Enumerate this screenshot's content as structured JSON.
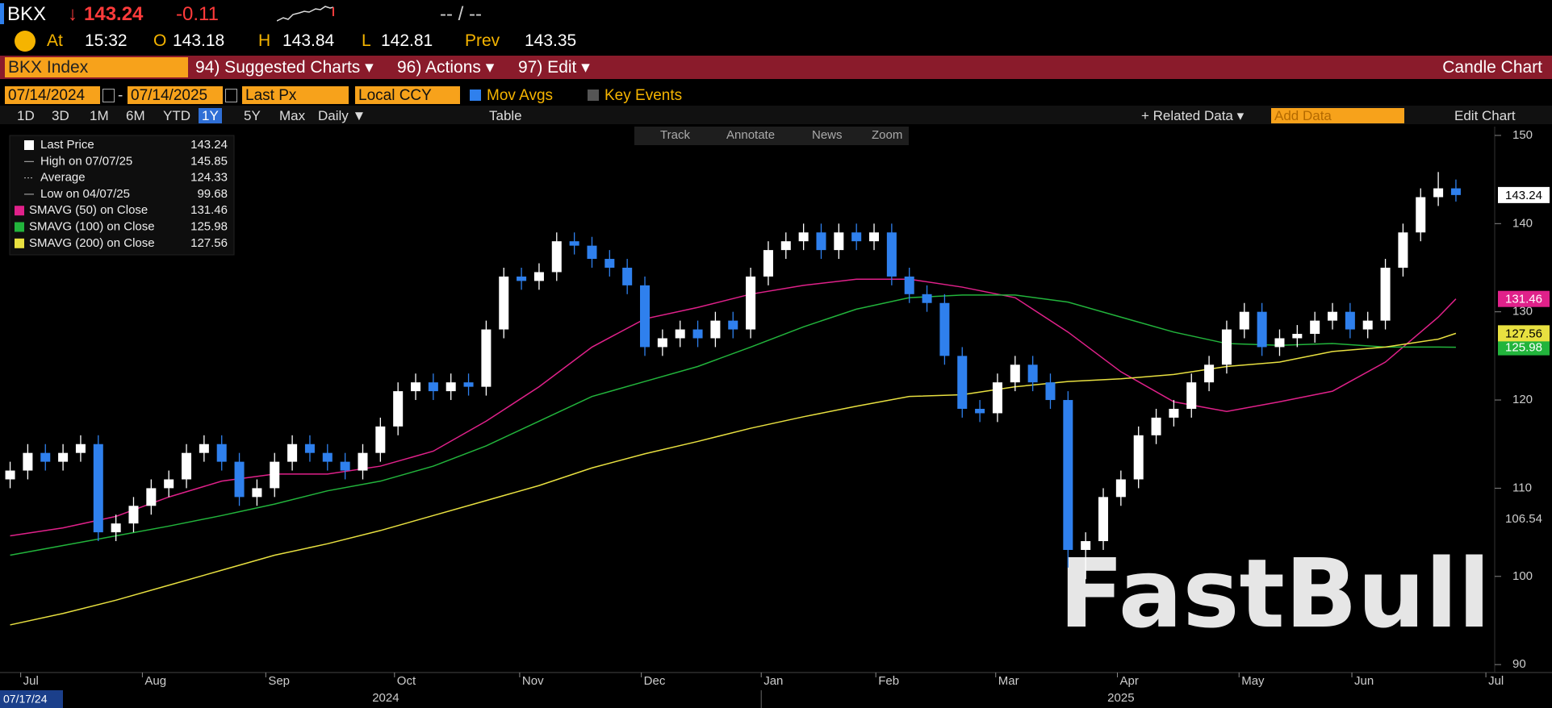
{
  "header": {
    "ticker": "BKX",
    "direction": "↓",
    "last": 143.24,
    "change": -0.11,
    "bid_ask": "-- / --",
    "at_label": "At",
    "time": "15:32",
    "open_label": "O",
    "open": 143.18,
    "high_label": "H",
    "high": 143.84,
    "low_label": "L",
    "low": 142.81,
    "prev_label": "Prev",
    "prev": 143.35
  },
  "menu": {
    "security": "BKX Index",
    "items": [
      "94) Suggested Charts ▾",
      "96) Actions ▾",
      "97) Edit ▾"
    ],
    "chart_type": "Candle Chart"
  },
  "controls": {
    "start": "07/14/2024",
    "separator": "-",
    "end": "07/14/2025",
    "field": "Last Px",
    "currency": "Local CCY",
    "mov_avgs": "Mov Avgs",
    "key_events": "Key Events"
  },
  "periods": [
    "1D",
    "3D",
    "1M",
    "6M",
    "YTD",
    "1Y",
    "5Y",
    "Max"
  ],
  "frequency": "Daily ▼",
  "table": "Table",
  "related": "+ Related Data ▾",
  "add_data": "Add Data",
  "edit_chart": "Edit Chart",
  "tools": [
    "Track",
    "Annotate",
    "News",
    "Zoom"
  ],
  "chart_data": {
    "type": "candlestick",
    "xlim": [
      -0.3,
      84.2
    ],
    "ylim": [
      89.1,
      151
    ],
    "yticks": [
      90,
      100,
      110,
      120,
      130,
      140,
      150
    ],
    "xticks": [
      {
        "value": 0.6,
        "label": "Jul"
      },
      {
        "value": 7.5,
        "label": "Aug"
      },
      {
        "value": 14.5,
        "label": "Sep"
      },
      {
        "value": 21.8,
        "label": "Oct"
      },
      {
        "value": 28.9,
        "label": "Nov"
      },
      {
        "value": 35.8,
        "label": "Dec"
      },
      {
        "value": 42.6,
        "label": "Jan"
      },
      {
        "value": 49.1,
        "label": "Feb"
      },
      {
        "value": 55.9,
        "label": "Mar"
      },
      {
        "value": 62.8,
        "label": "Apr"
      },
      {
        "value": 69.7,
        "label": "May"
      },
      {
        "value": 76.1,
        "label": "Jun"
      },
      {
        "value": 83.7,
        "label": "Jul"
      }
    ],
    "year_ticks": [
      {
        "value": 21.3,
        "label": "2024"
      },
      {
        "value": 63,
        "label": "2025"
      }
    ],
    "cursor_date": "07/17/24",
    "open": [
      111,
      112,
      114,
      113,
      114,
      115,
      105,
      106,
      108,
      110,
      111,
      114,
      115,
      113,
      109,
      110,
      113,
      115,
      114,
      113,
      112,
      114,
      117,
      121,
      122,
      121,
      122,
      121.5,
      128,
      134,
      133.5,
      134.5,
      138,
      137.5,
      136,
      135,
      133,
      126,
      127,
      128,
      127,
      129,
      128,
      134,
      137,
      138,
      139,
      137,
      139,
      138,
      139,
      134,
      132,
      131,
      125,
      119,
      118.5,
      122,
      124,
      122,
      120,
      103,
      104,
      109,
      111,
      116,
      118,
      119,
      122,
      124,
      128,
      130,
      126,
      127,
      127.5,
      129,
      130,
      128,
      129,
      135,
      139,
      143,
      144
    ],
    "high": [
      113,
      115,
      115,
      115,
      116,
      116,
      107,
      109,
      111,
      112,
      115,
      116,
      116,
      114,
      111,
      114,
      116,
      116,
      115,
      114,
      115,
      118,
      122,
      123,
      123,
      123,
      123,
      129,
      135,
      135,
      135.5,
      139,
      139,
      138.5,
      137,
      136,
      134,
      128,
      129,
      129,
      130,
      130,
      135,
      138,
      139,
      140,
      140,
      140,
      140,
      140,
      140,
      135,
      133,
      132,
      126,
      120,
      123,
      125,
      125,
      123,
      121,
      105,
      110,
      112,
      117,
      119,
      120,
      123,
      125,
      129,
      131,
      131,
      128,
      128.5,
      130,
      131,
      131,
      130,
      136,
      140,
      144,
      145.85,
      145
    ],
    "low": [
      110,
      111,
      112,
      112,
      113,
      104,
      104,
      105,
      107,
      109,
      110,
      113,
      112,
      108,
      108,
      109,
      112,
      113,
      112,
      111,
      111,
      113,
      116,
      120,
      120,
      120,
      120.5,
      120.5,
      127,
      132.5,
      132.5,
      133.5,
      136.5,
      135,
      134,
      132,
      125,
      125,
      126,
      126,
      126,
      127,
      127,
      133,
      136,
      137,
      136,
      136,
      137,
      137,
      133,
      131,
      130,
      124,
      118,
      117.5,
      117.5,
      121,
      121,
      119,
      101,
      99.68,
      103,
      108,
      110,
      115,
      117,
      118,
      121,
      123,
      127,
      125,
      125,
      126,
      126.5,
      128,
      127,
      127,
      128,
      134,
      138,
      142,
      142.5
    ],
    "close": [
      112,
      114,
      113,
      114,
      115,
      105,
      106,
      108,
      110,
      111,
      114,
      115,
      113,
      109,
      110,
      113,
      115,
      114,
      113,
      112,
      114,
      117,
      121,
      122,
      121,
      122,
      121.5,
      128,
      134,
      133.5,
      134.5,
      138,
      137.5,
      136,
      135,
      133,
      126,
      127,
      128,
      127,
      129,
      128,
      134,
      137,
      138,
      139,
      137,
      139,
      138,
      139,
      134,
      132,
      131,
      125,
      119,
      118.5,
      122,
      124,
      122,
      120,
      103,
      104,
      109,
      111,
      116,
      118,
      119,
      122,
      124,
      128,
      130,
      126,
      127,
      127.5,
      129,
      130,
      128,
      129,
      135,
      139,
      143,
      144,
      143.24
    ],
    "up_color": "#ffffff",
    "down_color": "#2f80ed",
    "marker": 106.54,
    "ma_x": [
      0,
      3,
      6,
      9,
      12,
      15,
      18,
      21,
      24,
      27,
      30,
      33,
      36,
      39,
      42,
      45,
      48,
      51,
      54,
      57,
      60,
      63,
      66,
      69,
      72,
      75,
      78,
      81,
      82
    ],
    "series": [
      {
        "name": "SMAVG (50) on Close",
        "color": "#e0218a",
        "values": [
          104.6,
          105.5,
          106.8,
          109,
          110.8,
          111.6,
          111.6,
          112.5,
          114.2,
          117.6,
          121.5,
          126,
          129.2,
          130.5,
          132,
          133,
          133.7,
          133.7,
          132.8,
          131.6,
          127.7,
          123.2,
          119.8,
          118.7,
          119.8,
          121,
          124.3,
          129.4,
          131.46
        ]
      },
      {
        "name": "SMAVG (100) on Close",
        "color": "#22b43c",
        "values": [
          102.4,
          103.5,
          104.6,
          105.7,
          106.9,
          108.2,
          109.7,
          110.8,
          112.5,
          114.8,
          117.6,
          120.4,
          122.1,
          123.8,
          126,
          128.3,
          130.3,
          131.6,
          131.9,
          131.9,
          131.1,
          129.4,
          127.7,
          126.4,
          126.2,
          126.4,
          126,
          126,
          125.98
        ]
      },
      {
        "name": "SMAVG (200) on Close",
        "color": "#e8e040",
        "values": [
          94.5,
          95.8,
          97.3,
          99,
          100.7,
          102.4,
          103.7,
          105.2,
          106.9,
          108.6,
          110.3,
          112.3,
          113.9,
          115.3,
          116.8,
          118.1,
          119.3,
          120.4,
          120.6,
          121.5,
          122.1,
          122.4,
          122.9,
          123.8,
          124.3,
          125.5,
          126,
          126.9,
          127.56
        ]
      }
    ],
    "legend": [
      {
        "label": "Last Price",
        "value": 143.24
      },
      {
        "label": "High on 07/07/25",
        "value": 145.85
      },
      {
        "label": "Average",
        "value": 124.33
      },
      {
        "label": "Low on 04/07/25",
        "value": 99.68
      }
    ],
    "watermark": "FastBull"
  }
}
